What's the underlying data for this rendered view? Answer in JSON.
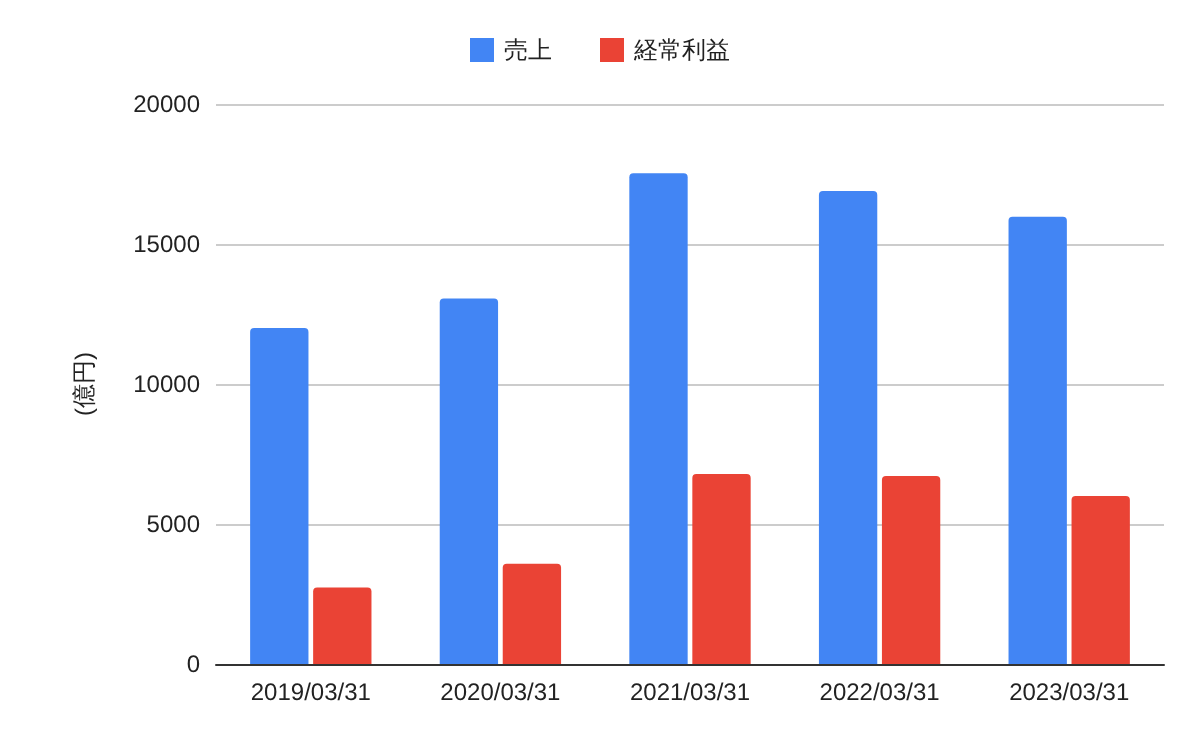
{
  "chart_data": {
    "type": "bar",
    "ylabel": "(億円)",
    "categories": [
      "2019/03/31",
      "2020/03/31",
      "2021/03/31",
      "2022/03/31",
      "2023/03/31"
    ],
    "series": [
      {
        "name": "売上",
        "color": "#4285f4",
        "values": [
          12000,
          13050,
          17530,
          16890,
          15970
        ]
      },
      {
        "name": "経常利益",
        "color": "#ea4335",
        "values": [
          2730,
          3580,
          6790,
          6710,
          6000
        ]
      }
    ],
    "ylim": [
      0,
      20000
    ],
    "yticks": [
      0,
      5000,
      10000,
      15000,
      20000
    ],
    "grid": "y",
    "legend": "top"
  }
}
